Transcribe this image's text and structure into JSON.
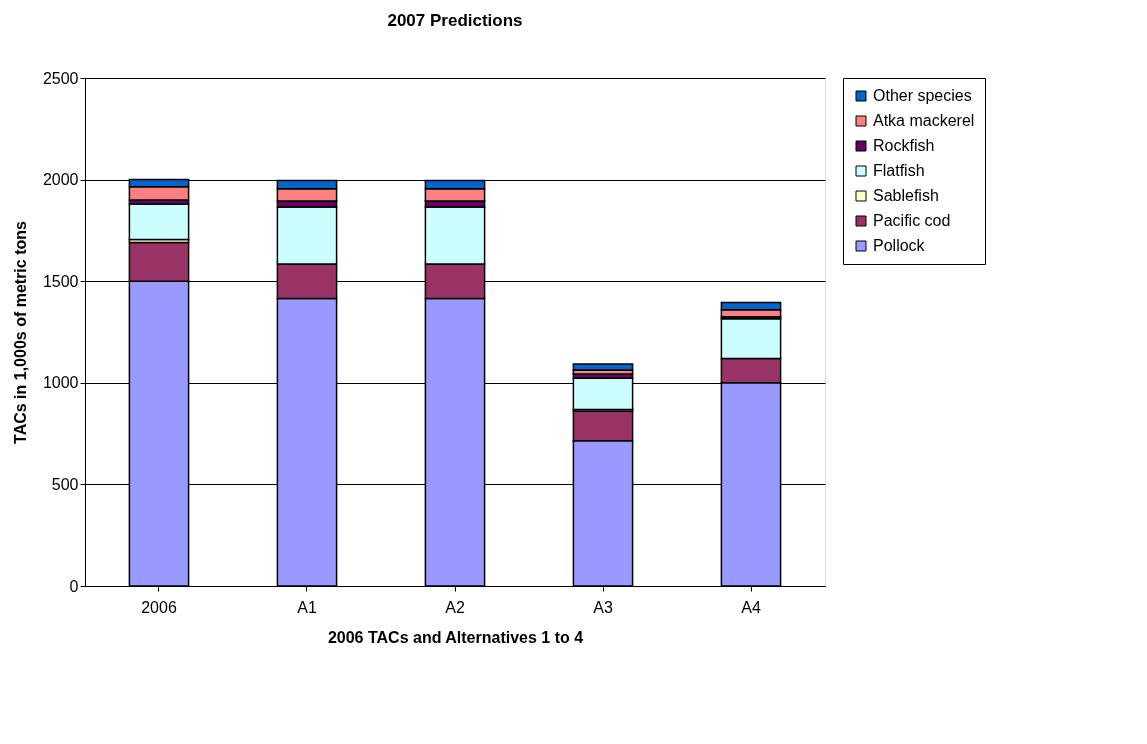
{
  "chart_data": {
    "type": "bar",
    "stacked": true,
    "title": "2007 Predictions",
    "xlabel": "2006 TACs and Alternatives 1 to 4",
    "ylabel": "TACs in 1,000s of metric tons",
    "categories": [
      "2006",
      "A1",
      "A2",
      "A3",
      "A4"
    ],
    "series": [
      {
        "name": "Pollock",
        "color": "#9999ff",
        "values": [
          1500,
          1415,
          1415,
          715,
          1000
        ]
      },
      {
        "name": "Pacific cod",
        "color": "#993366",
        "values": [
          190,
          170,
          170,
          145,
          120
        ]
      },
      {
        "name": "Sablefish",
        "color": "#ffffcc",
        "values": [
          15,
          null,
          null,
          8,
          null
        ]
      },
      {
        "name": "Flatfish",
        "color": "#ccffff",
        "values": [
          175,
          280,
          280,
          155,
          195
        ]
      },
      {
        "name": "Rockfish",
        "color": "#660066",
        "values": [
          20,
          30,
          30,
          20,
          10
        ]
      },
      {
        "name": "Atka mackerel",
        "color": "#ff8080",
        "values": [
          65,
          60,
          60,
          20,
          35
        ]
      },
      {
        "name": "Other species",
        "color": "#0066cc",
        "values": [
          35,
          40,
          40,
          30,
          35
        ]
      }
    ],
    "ylim": [
      0,
      2500
    ],
    "yticks": [
      0,
      500,
      1000,
      1500,
      2000,
      2500
    ],
    "grid": "y",
    "legend": "right"
  }
}
